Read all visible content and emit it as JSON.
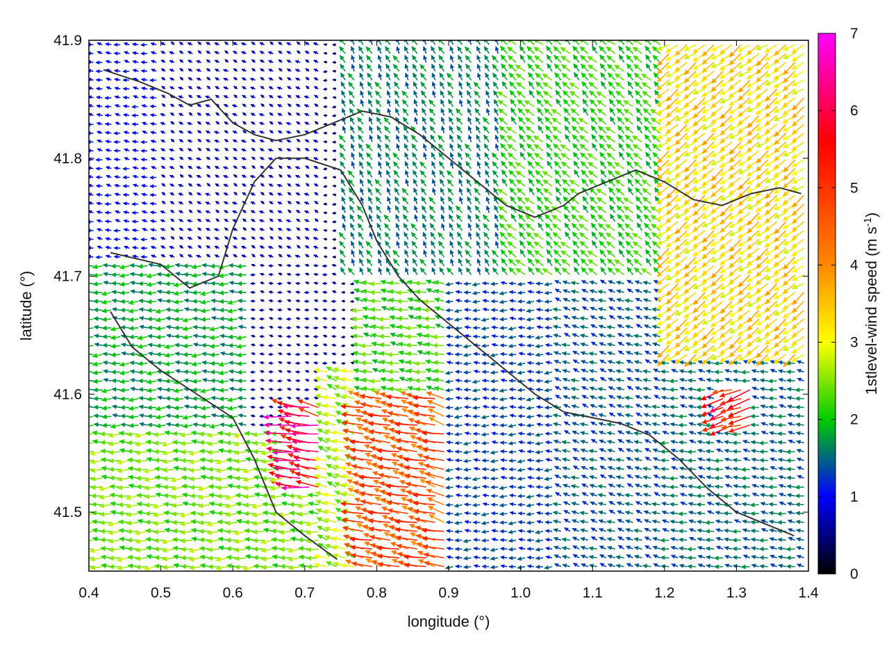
{
  "chart_data": {
    "type": "vector_field",
    "xlabel": "longitude (°)",
    "ylabel": "latitude (°)",
    "xlim": [
      0.4,
      1.4
    ],
    "ylim": [
      41.45,
      41.9
    ],
    "x_ticks": [
      "0.4",
      "0.5",
      "0.6",
      "0.7",
      "0.8",
      "0.9",
      "1.0",
      "1.1",
      "1.2",
      "1.3",
      "1.4"
    ],
    "y_ticks": [
      "41.5",
      "41.6",
      "41.7",
      "41.8",
      "41.9"
    ],
    "x_tick_values": [
      0.4,
      0.5,
      0.6,
      0.7,
      0.8,
      0.9,
      1.0,
      1.1,
      1.2,
      1.3,
      1.4
    ],
    "y_tick_values": [
      41.5,
      41.6,
      41.7,
      41.8,
      41.9
    ],
    "colorbar": {
      "label_main": "1stlevel-wind speed (m s",
      "label_sup": "-1",
      "label_end": ")",
      "range": [
        0,
        7
      ],
      "ticks": [
        "0",
        "1",
        "2",
        "3",
        "4",
        "5",
        "6",
        "7"
      ],
      "tick_values": [
        0,
        1,
        2,
        3,
        4,
        5,
        6,
        7
      ],
      "colors": [
        "#000000",
        "#0000ff",
        "#00cc00",
        "#ffff00",
        "#ff8800",
        "#ff0000",
        "#ff00ff"
      ],
      "color_stops": [
        0,
        1,
        2,
        3,
        4,
        5.6,
        7
      ]
    },
    "grid": false,
    "vector_spacing_deg": {
      "lon": 0.0125,
      "lat": 0.0075
    },
    "wind_regions": [
      {
        "lon": [
          0.4,
          0.72
        ],
        "lat": [
          41.45,
          41.57
        ],
        "speed": 2.4,
        "dir_deg": 180
      },
      {
        "lon": [
          0.4,
          0.62
        ],
        "lat": [
          41.57,
          41.71
        ],
        "speed": 1.8,
        "dir_deg": 180
      },
      {
        "lon": [
          0.4,
          0.5
        ],
        "lat": [
          41.71,
          41.9
        ],
        "speed": 1.0,
        "dir_deg": 170
      },
      {
        "lon": [
          0.5,
          0.72
        ],
        "lat": [
          41.71,
          41.9
        ],
        "speed": 0.7,
        "dir_deg": 150
      },
      {
        "lon": [
          0.62,
          0.75
        ],
        "lat": [
          41.57,
          41.71
        ],
        "speed": 0.6,
        "dir_deg": 170
      },
      {
        "lon": [
          0.72,
          0.78
        ],
        "lat": [
          41.45,
          41.62
        ],
        "speed": 2.6,
        "dir_deg": 160
      },
      {
        "lon": [
          0.77,
          0.9
        ],
        "lat": [
          41.45,
          41.6
        ],
        "speed": 4.6,
        "dir_deg": 165
      },
      {
        "lon": [
          0.77,
          0.92
        ],
        "lat": [
          41.6,
          41.7
        ],
        "speed": 2.2,
        "dir_deg": 170
      },
      {
        "lon": [
          0.75,
          0.98
        ],
        "lat": [
          41.7,
          41.9
        ],
        "speed": 1.6,
        "dir_deg": 120
      },
      {
        "lon": [
          0.9,
          1.05
        ],
        "lat": [
          41.45,
          41.7
        ],
        "speed": 1.3,
        "dir_deg": 180
      },
      {
        "lon": [
          0.98,
          1.2
        ],
        "lat": [
          41.7,
          41.9
        ],
        "speed": 2.1,
        "dir_deg": 135
      },
      {
        "lon": [
          1.05,
          1.2
        ],
        "lat": [
          41.45,
          41.7
        ],
        "speed": 1.4,
        "dir_deg": 160
      },
      {
        "lon": [
          1.2,
          1.4
        ],
        "lat": [
          41.45,
          41.63
        ],
        "speed": 1.5,
        "dir_deg": 170
      },
      {
        "lon": [
          1.2,
          1.4
        ],
        "lat": [
          41.63,
          41.9
        ],
        "speed": 3.3,
        "dir_deg": 215
      },
      {
        "lon": [
          1.28,
          1.32
        ],
        "lat": [
          41.57,
          41.61
        ],
        "speed": 5.4,
        "dir_deg": 200
      },
      {
        "lon": [
          0.67,
          0.73
        ],
        "lat": [
          41.52,
          41.59
        ],
        "speed": 5.8,
        "dir_deg": 170
      }
    ],
    "coastlines": [
      [
        [
          0.43,
          41.67
        ],
        [
          0.46,
          41.64
        ],
        [
          0.5,
          41.62
        ],
        [
          0.55,
          41.6
        ],
        [
          0.6,
          41.58
        ],
        [
          0.63,
          41.545
        ],
        [
          0.66,
          41.5
        ],
        [
          0.7,
          41.48
        ],
        [
          0.745,
          41.46
        ]
      ],
      [
        [
          0.43,
          41.72
        ],
        [
          0.5,
          41.71
        ],
        [
          0.54,
          41.69
        ],
        [
          0.58,
          41.7
        ],
        [
          0.6,
          41.74
        ],
        [
          0.63,
          41.78
        ],
        [
          0.66,
          41.8
        ],
        [
          0.7,
          41.8
        ],
        [
          0.75,
          41.79
        ]
      ],
      [
        [
          0.42,
          41.875
        ],
        [
          0.47,
          41.865
        ],
        [
          0.51,
          41.855
        ],
        [
          0.54,
          41.845
        ],
        [
          0.57,
          41.85
        ],
        [
          0.6,
          41.83
        ],
        [
          0.63,
          41.82
        ],
        [
          0.66,
          41.815
        ],
        [
          0.7,
          41.82
        ],
        [
          0.74,
          41.83
        ]
      ],
      [
        [
          0.75,
          41.79
        ],
        [
          0.78,
          41.76
        ],
        [
          0.8,
          41.73
        ],
        [
          0.83,
          41.7
        ],
        [
          0.86,
          41.68
        ],
        [
          0.9,
          41.66
        ],
        [
          0.94,
          41.64
        ],
        [
          0.98,
          41.62
        ],
        [
          1.02,
          41.6
        ],
        [
          1.06,
          41.585
        ]
      ],
      [
        [
          0.74,
          41.83
        ],
        [
          0.78,
          41.84
        ],
        [
          0.82,
          41.835
        ],
        [
          0.86,
          41.82
        ],
        [
          0.9,
          41.8
        ],
        [
          0.94,
          41.78
        ],
        [
          0.98,
          41.76
        ],
        [
          1.02,
          41.75
        ],
        [
          1.06,
          41.76
        ],
        [
          1.08,
          41.77
        ]
      ],
      [
        [
          1.06,
          41.585
        ],
        [
          1.1,
          41.58
        ],
        [
          1.14,
          41.575
        ],
        [
          1.18,
          41.565
        ],
        [
          1.22,
          41.545
        ],
        [
          1.26,
          41.52
        ],
        [
          1.3,
          41.5
        ],
        [
          1.34,
          41.49
        ],
        [
          1.38,
          41.48
        ]
      ],
      [
        [
          1.08,
          41.77
        ],
        [
          1.12,
          41.78
        ],
        [
          1.16,
          41.79
        ],
        [
          1.2,
          41.78
        ],
        [
          1.24,
          41.765
        ],
        [
          1.28,
          41.76
        ],
        [
          1.32,
          41.77
        ],
        [
          1.36,
          41.775
        ],
        [
          1.39,
          41.77
        ]
      ]
    ]
  }
}
